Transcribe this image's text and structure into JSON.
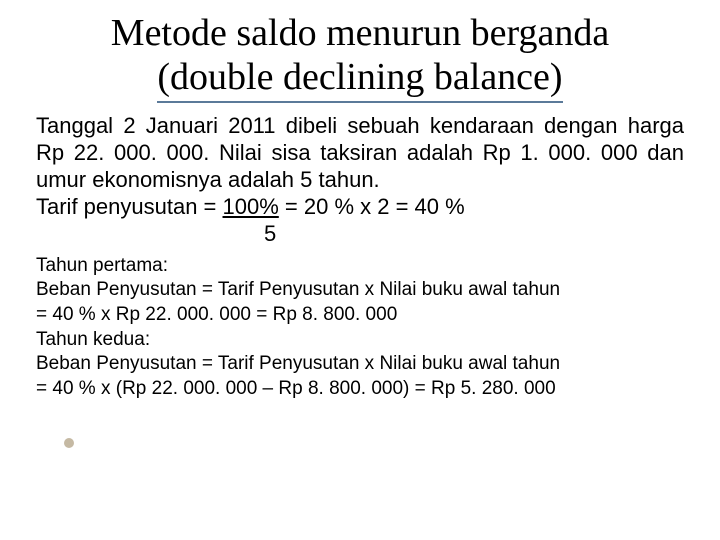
{
  "title_line1": "Metode saldo menurun berganda",
  "title_line2": "(double declining balance)",
  "para1": "Tanggal 2 Januari 2011 dibeli sebuah kendaraan dengan harga Rp 22. 000. 000. Nilai sisa taksiran adalah Rp 1. 000. 000 dan umur ekonomisnya adalah 5 tahun.",
  "tarif_prefix": "Tarif penyusutan = ",
  "tarif_underlined": "100%",
  "tarif_suffix": " = 20 % x 2 = 40 %",
  "tarif_divisor": "5",
  "sub1": "Tahun pertama:",
  "sub2": "Beban Penyusutan = Tarif Penyusutan x Nilai buku awal tahun",
  "sub3": "= 40 % x Rp 22. 000. 000 = Rp 8. 800. 000",
  "sub4": "Tahun kedua:",
  "sub5": "Beban Penyusutan = Tarif Penyusutan x Nilai buku awal tahun",
  "sub6": "= 40 % x (Rp 22. 000. 000 – Rp 8. 800. 000) = Rp 5. 280. 000",
  "colors": {
    "title_underline": "#5b7a99",
    "bullet": "#c5b9a3",
    "text": "#000000",
    "background": "#ffffff"
  },
  "fonts": {
    "title_family": "Georgia, serif",
    "title_size_pt": 29,
    "body_size_pt": 17,
    "sub_size_pt": 14
  }
}
